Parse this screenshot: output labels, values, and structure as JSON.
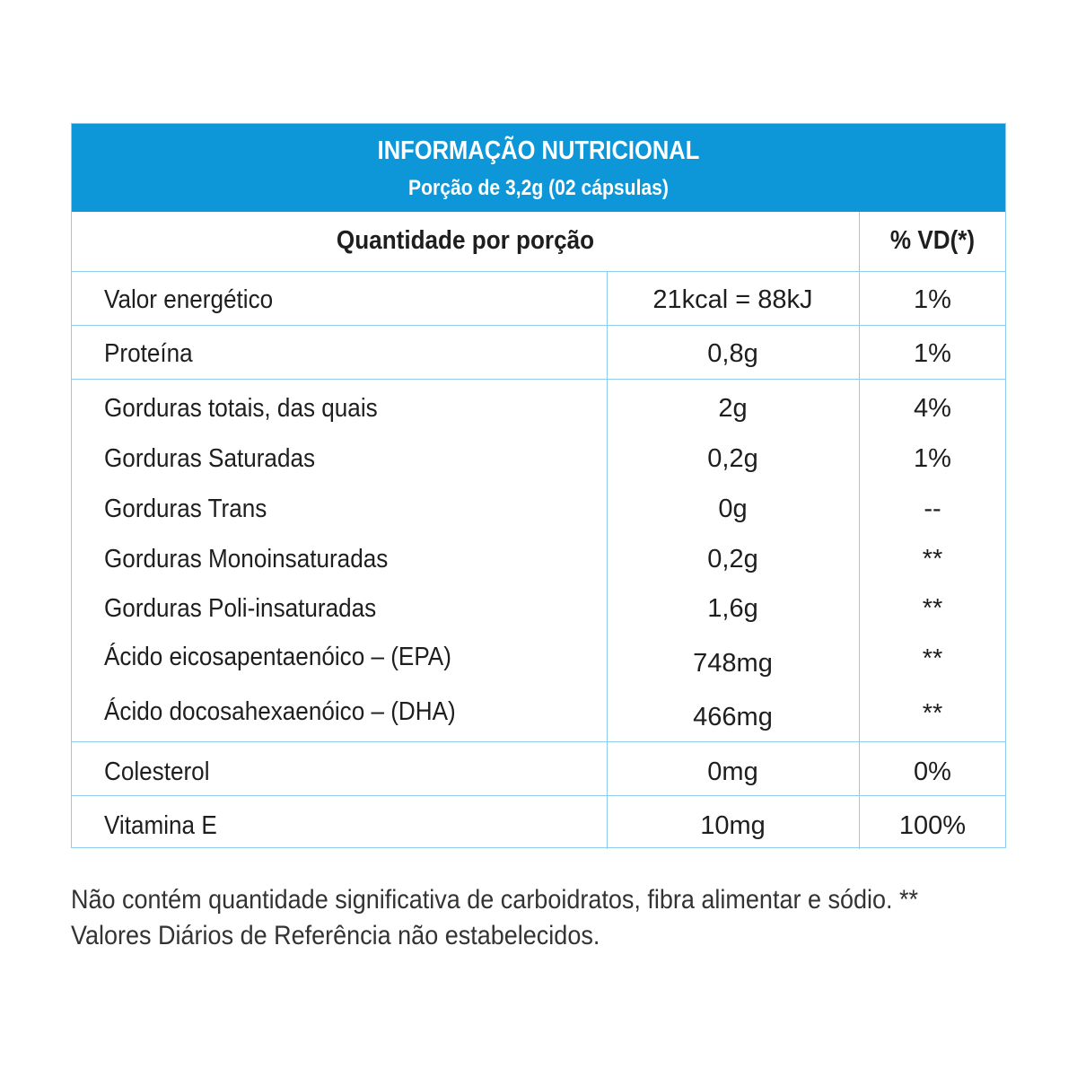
{
  "header": {
    "title": "INFORMAÇÃO NUTRICIONAL",
    "subtitle": "Porção de 3,2g (02 cápsulas)"
  },
  "columns": {
    "quantity": "Quantidade por porção",
    "daily_value": "% VD(*)"
  },
  "rows": [
    {
      "label": "Valor energético",
      "qty": "21kcal = 88kJ",
      "vd": "1%"
    },
    {
      "label": "Proteína",
      "qty": "0,8g",
      "vd": "1%"
    },
    {
      "label": "Gorduras totais, das quais",
      "qty": "2g",
      "vd": "4%"
    },
    {
      "label": "Gorduras Saturadas",
      "qty": "0,2g",
      "vd": "1%"
    },
    {
      "label": "Gorduras Trans",
      "qty": "0g",
      "vd": "--"
    },
    {
      "label": "Gorduras Monoinsaturadas",
      "qty": "0,2g",
      "vd": "**"
    },
    {
      "label": "Gorduras Poli-insaturadas",
      "qty": "1,6g",
      "vd": "**"
    },
    {
      "label": "Ácido eicosapentaenóico – (EPA)",
      "qty": "748mg",
      "vd": "**"
    },
    {
      "label": "Ácido docosahexaenóico – (DHA)",
      "qty": "466mg",
      "vd": "**"
    },
    {
      "label": "Colesterol",
      "qty": "0mg",
      "vd": "0%"
    },
    {
      "label": "Vitamina E",
      "qty": "10mg",
      "vd": "100%"
    }
  ],
  "footnote": {
    "line1": "Não contém quantidade significativa de carboidratos, fibra alimentar e sódio. **",
    "line2": "Valores Diários de Referência não estabelecidos."
  },
  "colors": {
    "header_bg": "#0d97d9",
    "border": "#8fcdee"
  }
}
